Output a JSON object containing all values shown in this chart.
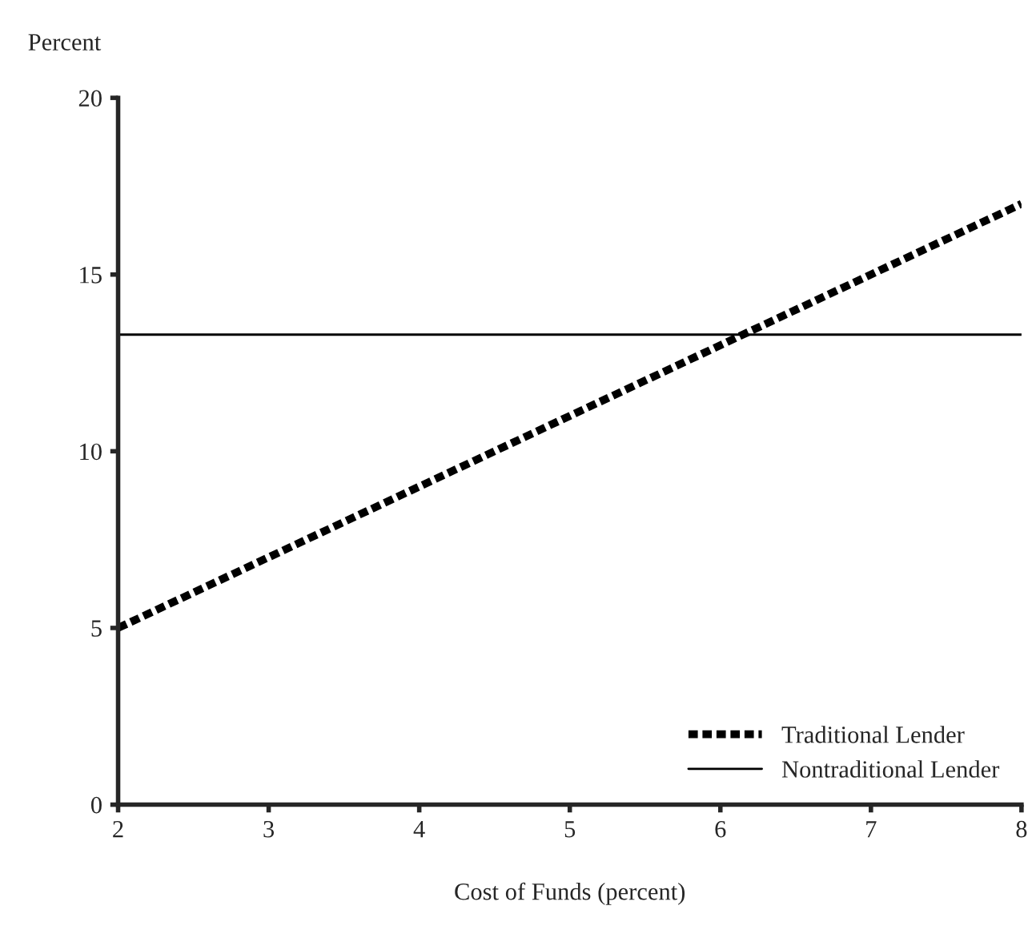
{
  "chart_data": {
    "type": "line",
    "ylabel": "Percent",
    "xlabel": "Cost of Funds (percent)",
    "x": [
      2,
      8
    ],
    "series": [
      {
        "name": "Traditional Lender",
        "color": "#000000",
        "values": [
          5,
          17
        ],
        "line_style": "dashed"
      },
      {
        "name": "Nontraditional Lender",
        "color": "#000000",
        "values": [
          13.3,
          13.3
        ],
        "line_style": "solid"
      }
    ],
    "xlim": [
      2,
      8
    ],
    "xticks": [
      2,
      3,
      4,
      5,
      6,
      7,
      8
    ],
    "ylim": [
      0,
      20
    ],
    "yticks": [
      0,
      5,
      10,
      15,
      20
    ],
    "grid": false,
    "legend": "bottom right",
    "marker": "none"
  }
}
